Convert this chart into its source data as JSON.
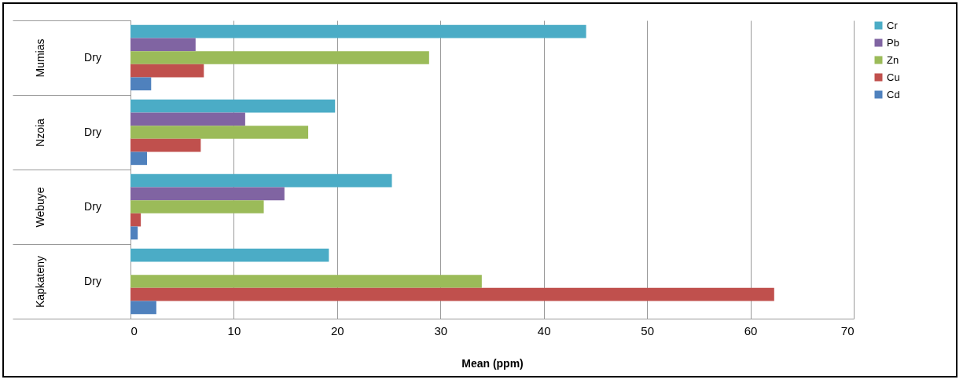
{
  "chart_data": {
    "type": "bar",
    "orientation": "horizontal",
    "xlabel": "Mean (ppm)",
    "categories": [
      "Mumias",
      "Nzoia",
      "Webuye",
      "Kapkateny"
    ],
    "series": [
      {
        "name": "Cr",
        "color": "#4bacc6",
        "values": [
          44.1,
          19.8,
          25.3,
          19.2
        ]
      },
      {
        "name": "Pb",
        "color": "#8064a2",
        "values": [
          6.3,
          11.1,
          14.9,
          null
        ]
      },
      {
        "name": "Zn",
        "color": "#9bbb59",
        "values": [
          28.9,
          17.2,
          12.9,
          34.0
        ]
      },
      {
        "name": "Cu",
        "color": "#c0504d",
        "values": [
          7.1,
          6.8,
          1.0,
          62.3
        ]
      },
      {
        "name": "Cd",
        "color": "#4f81bd",
        "values": [
          2.0,
          1.6,
          0.7,
          2.5
        ]
      }
    ],
    "annotations": [
      "Dry",
      "Dry",
      "Dry",
      "Dry"
    ],
    "xlim": [
      0,
      70
    ],
    "xticks": [
      0,
      10,
      20,
      30,
      40,
      50,
      60,
      70
    ],
    "grid": "x",
    "legend": "right"
  }
}
